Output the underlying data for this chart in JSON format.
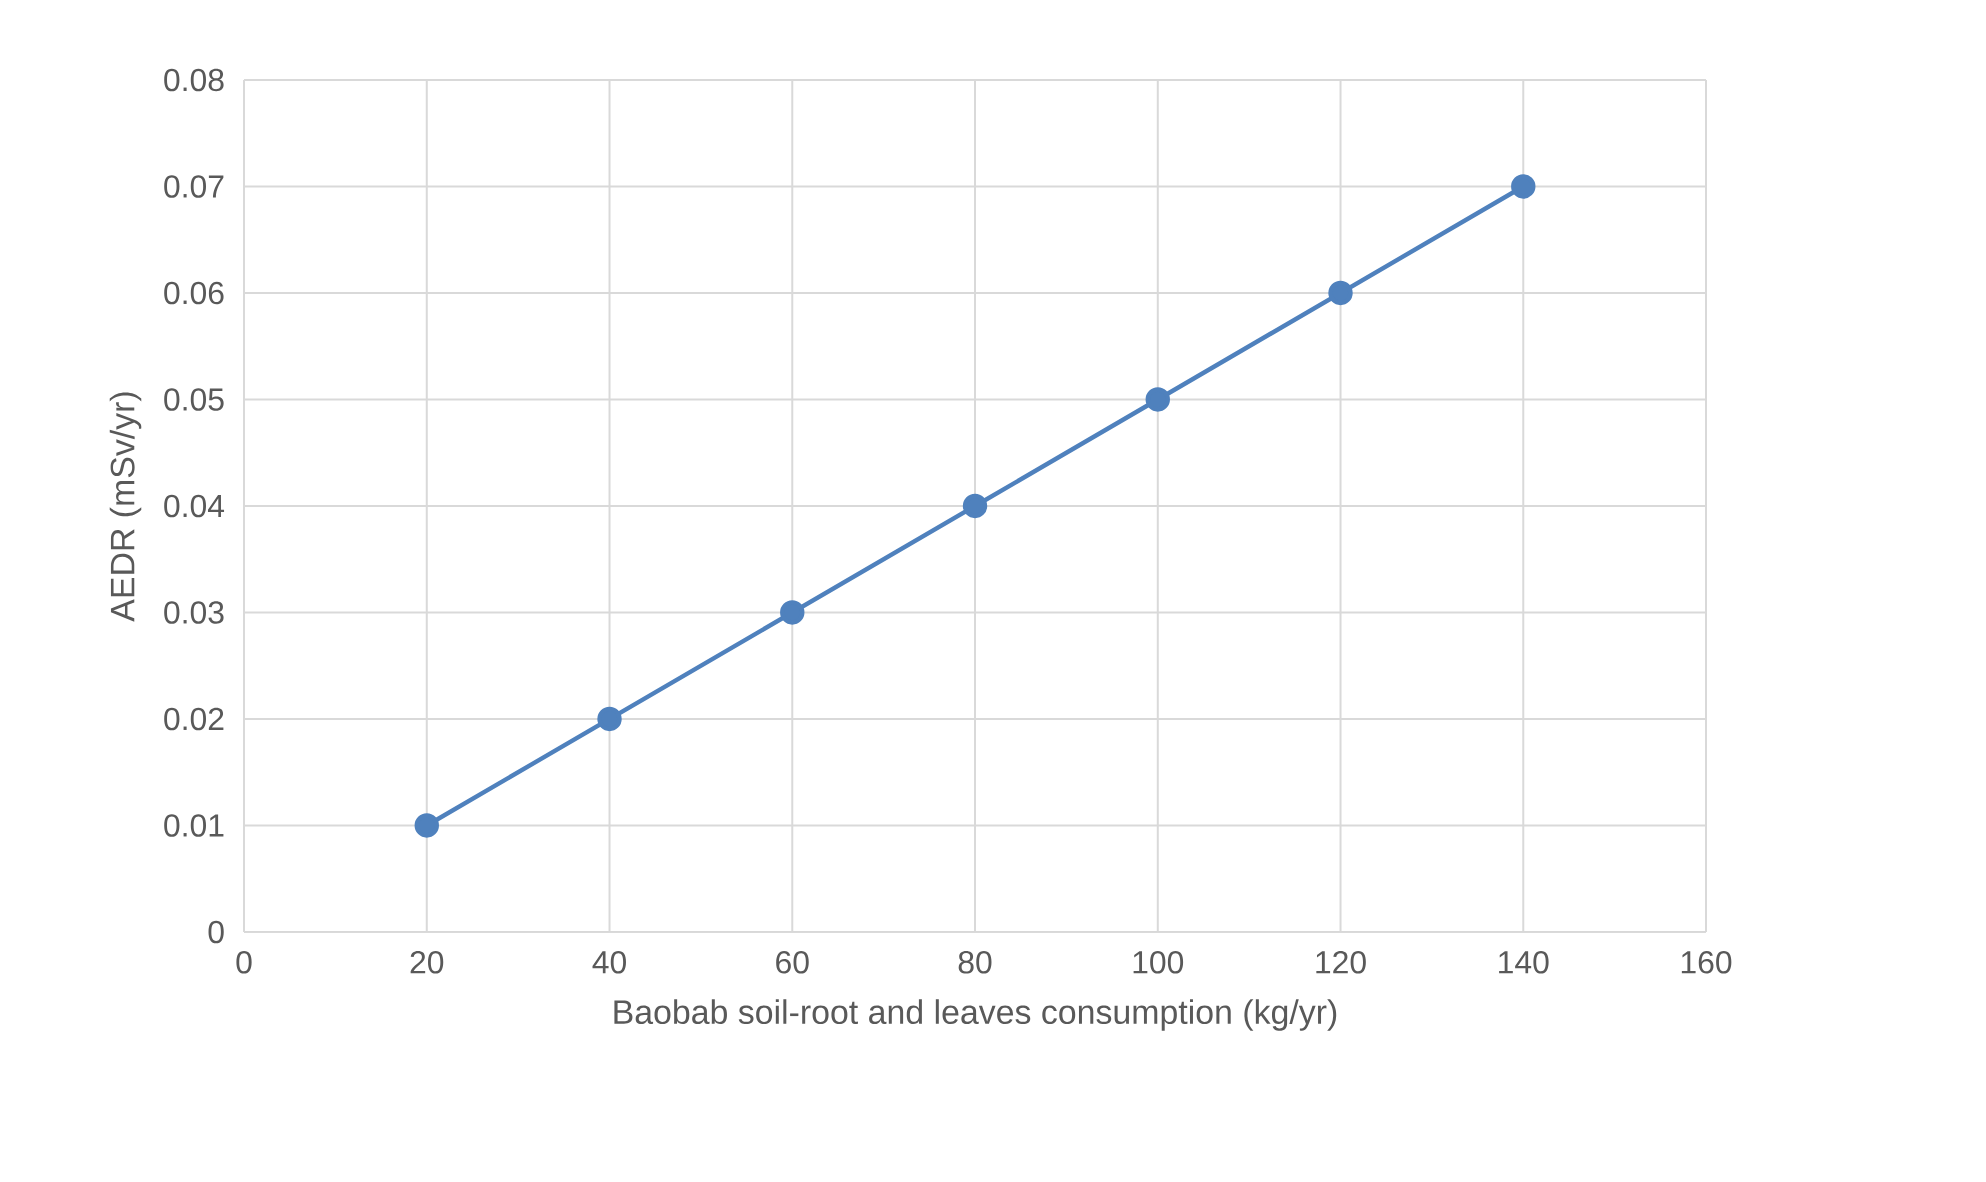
{
  "chart_data": {
    "type": "line",
    "xlabel": "Baobab soil-root and leaves  consumption (kg/yr)",
    "ylabel": "AEDR (mSv/yr)",
    "x": [
      20,
      40,
      60,
      80,
      100,
      120,
      140
    ],
    "series": [
      {
        "color": "#4f81bd",
        "values": [
          0.01,
          0.02,
          0.03,
          0.04,
          0.05,
          0.06,
          0.07
        ]
      }
    ],
    "xlim": [
      0,
      160
    ],
    "xticks": [
      0,
      20,
      40,
      60,
      80,
      100,
      120,
      140,
      160
    ],
    "ylim": [
      0,
      0.08
    ],
    "yticks": [
      0,
      0.01,
      0.02,
      0.03,
      0.04,
      0.05,
      0.06,
      0.07,
      0.08
    ],
    "grid": true,
    "marker": "circle",
    "line_style": "solid"
  }
}
